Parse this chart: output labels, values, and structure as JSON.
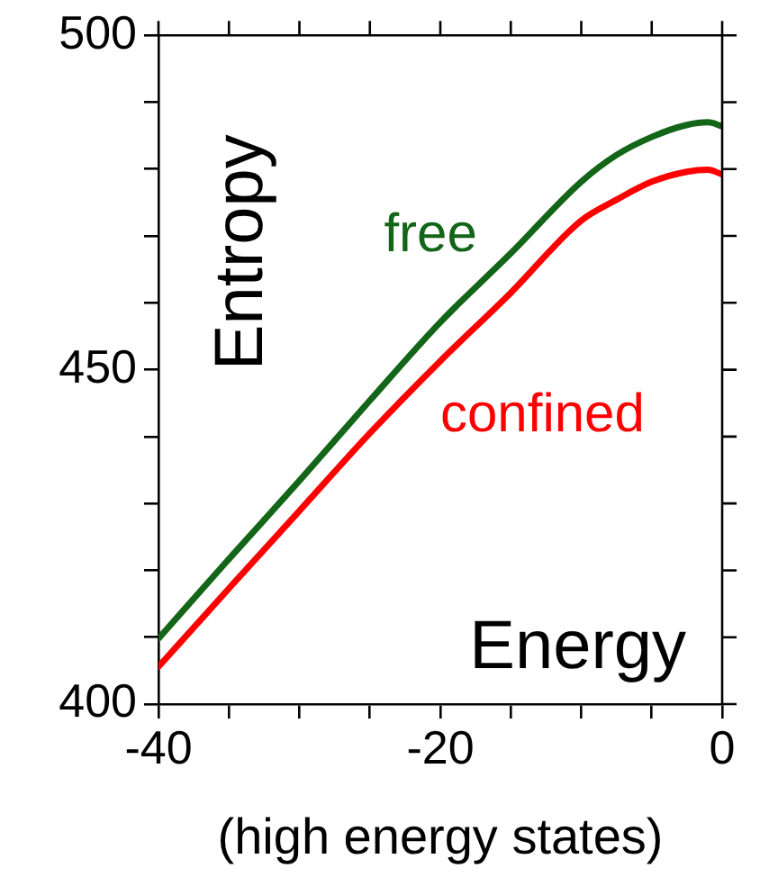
{
  "chart_data": {
    "type": "line",
    "xlabel": "Energy",
    "ylabel": "Entropy",
    "annotations": [
      "(high energy states)"
    ],
    "x": [
      -40,
      -35,
      -30,
      -25,
      -20,
      -15,
      -10,
      -7.5,
      -5,
      -2.5,
      -1,
      0
    ],
    "series": [
      {
        "name": "free",
        "color": "#136518",
        "values": [
          409.8,
          421.7,
          433.4,
          445.4,
          457.1,
          467.4,
          478.1,
          482.1,
          484.8,
          486.6,
          487,
          486.4
        ]
      },
      {
        "name": "confined",
        "color": "#ff0000",
        "values": [
          405.6,
          417.3,
          428.9,
          440.5,
          451.3,
          461.5,
          472.3,
          475.4,
          478.1,
          479.6,
          479.9,
          479.2
        ]
      }
    ],
    "xlim": [
      -40,
      0
    ],
    "ylim": [
      400,
      500
    ],
    "xticks": [
      -40,
      {
        "value": -35,
        "label": null
      },
      {
        "value": -30,
        "label": null
      },
      {
        "value": -25,
        "label": null
      },
      -20,
      {
        "value": -15,
        "label": null
      },
      {
        "value": -10,
        "label": null
      },
      {
        "value": -5,
        "label": null
      },
      0
    ],
    "yticks": [
      400,
      {
        "value": 410,
        "label": null
      },
      {
        "value": 420,
        "label": null
      },
      {
        "value": 430,
        "label": null
      },
      {
        "value": 440,
        "label": null
      },
      450,
      {
        "value": 460,
        "label": null
      },
      {
        "value": 470,
        "label": null
      },
      {
        "value": 480,
        "label": null
      },
      {
        "value": 490,
        "label": null
      },
      500
    ],
    "grid": false,
    "legend": false,
    "marker": "none",
    "line_style": "solid"
  }
}
